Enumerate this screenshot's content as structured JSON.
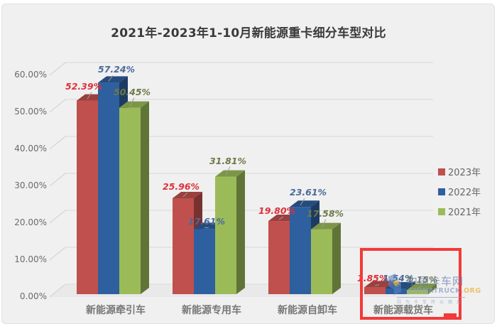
{
  "chart_data": {
    "type": "bar",
    "style": "3d-clustered-column",
    "title": "2021年-2023年1-10月新能源重卡细分车型对比",
    "xlabel": "",
    "ylabel": "",
    "ylim": [
      0,
      60
    ],
    "yticks": [
      "0.00%",
      "10.00%",
      "20.00%",
      "30.00%",
      "40.00%",
      "50.00%",
      "60.00%"
    ],
    "grid": true,
    "legend_position": "right",
    "categories": [
      "新能源牵引车",
      "新能源专用车",
      "新能源自卸车",
      "新能源载货车"
    ],
    "series": [
      {
        "name": "2023年",
        "color": "#c0504d",
        "values": [
          52.39,
          25.96,
          19.8,
          1.85
        ],
        "labels": [
          "52.39%",
          "25.96%",
          "19.80%",
          "1.85%"
        ]
      },
      {
        "name": "2022年",
        "color": "#2e5f9e",
        "values": [
          57.24,
          17.61,
          23.61,
          1.54
        ],
        "labels": [
          "57.24%",
          "17.61%",
          "23.61%",
          "1.54%"
        ]
      },
      {
        "name": "2021年",
        "color": "#9bbb59",
        "values": [
          50.45,
          31.81,
          17.58,
          1.15
        ],
        "labels": [
          "50.45%",
          "31.81%",
          "17.58%",
          "1.15%"
        ]
      }
    ],
    "annotations": [
      "red highlight box around 新能源载货车"
    ]
  },
  "watermark": {
    "cn": "中国卡车网",
    "en_a": "CHINATRUCK",
    "en_b": ".ORG",
    "sub": "因为卡车所以朋友"
  }
}
